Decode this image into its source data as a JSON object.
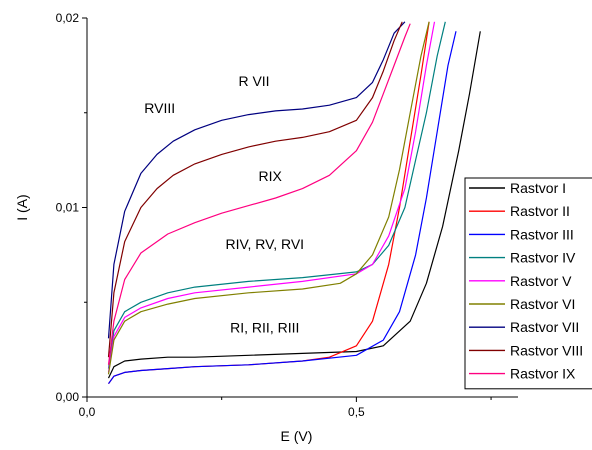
{
  "chart_data": {
    "type": "line",
    "title": "",
    "xlabel": "E (V)",
    "ylabel": "I (A)",
    "xlim": [
      0,
      0.8
    ],
    "ylim": [
      0,
      0.02
    ],
    "xticks": [
      0.0,
      0.5
    ],
    "xtick_labels": [
      "0,0",
      "0,5"
    ],
    "yticks": [
      0.0,
      0.01,
      0.02
    ],
    "ytick_labels": [
      "0,00",
      "0,01",
      "0,02"
    ],
    "grid": false,
    "legend_position": "right",
    "annotations": [
      {
        "text": "R VII",
        "x": 0.31,
        "y": 0.0164
      },
      {
        "text": "RVIII",
        "x": 0.135,
        "y": 0.015
      },
      {
        "text": "RIX",
        "x": 0.34,
        "y": 0.0114
      },
      {
        "text": "RIV, RV, RVI",
        "x": 0.33,
        "y": 0.0078
      },
      {
        "text": "RI, RII, RIII",
        "x": 0.33,
        "y": 0.0034
      }
    ],
    "series": [
      {
        "name": "Rastvor I",
        "color": "#000000",
        "x": [
          0.04,
          0.05,
          0.07,
          0.1,
          0.15,
          0.2,
          0.3,
          0.4,
          0.5,
          0.55,
          0.6,
          0.63,
          0.66,
          0.69,
          0.71,
          0.73
        ],
        "y": [
          0.001,
          0.0016,
          0.0019,
          0.002,
          0.0021,
          0.0021,
          0.0022,
          0.0023,
          0.0024,
          0.0027,
          0.004,
          0.006,
          0.009,
          0.013,
          0.016,
          0.0193
        ]
      },
      {
        "name": "Rastvor II",
        "color": "#ff0000",
        "x": [
          0.04,
          0.05,
          0.07,
          0.1,
          0.15,
          0.2,
          0.3,
          0.4,
          0.45,
          0.5,
          0.53,
          0.56,
          0.58,
          0.6,
          0.62,
          0.635
        ],
        "y": [
          0.0007,
          0.0011,
          0.0013,
          0.0014,
          0.0015,
          0.0016,
          0.0017,
          0.0019,
          0.0021,
          0.0027,
          0.004,
          0.007,
          0.01,
          0.0135,
          0.017,
          0.0198
        ]
      },
      {
        "name": "Rastvor III",
        "color": "#0000ff",
        "x": [
          0.04,
          0.05,
          0.07,
          0.1,
          0.15,
          0.2,
          0.3,
          0.4,
          0.5,
          0.55,
          0.58,
          0.61,
          0.63,
          0.65,
          0.67,
          0.685
        ],
        "y": [
          0.0007,
          0.0011,
          0.0013,
          0.0014,
          0.0015,
          0.0016,
          0.0017,
          0.0019,
          0.0022,
          0.003,
          0.0045,
          0.0075,
          0.0105,
          0.014,
          0.0175,
          0.0193
        ]
      },
      {
        "name": "Rastvor IV",
        "color": "#008080",
        "x": [
          0.04,
          0.05,
          0.07,
          0.1,
          0.15,
          0.2,
          0.3,
          0.4,
          0.5,
          0.53,
          0.56,
          0.59,
          0.61,
          0.63,
          0.65,
          0.665
        ],
        "y": [
          0.0015,
          0.0035,
          0.0045,
          0.005,
          0.0055,
          0.0058,
          0.0061,
          0.0063,
          0.0066,
          0.007,
          0.008,
          0.01,
          0.0125,
          0.015,
          0.018,
          0.0198
        ]
      },
      {
        "name": "Rastvor V",
        "color": "#ff00ff",
        "x": [
          0.04,
          0.05,
          0.07,
          0.1,
          0.15,
          0.2,
          0.3,
          0.4,
          0.5,
          0.53,
          0.56,
          0.59,
          0.61,
          0.63,
          0.645
        ],
        "y": [
          0.0013,
          0.0032,
          0.0042,
          0.0047,
          0.0052,
          0.0055,
          0.0058,
          0.0061,
          0.0065,
          0.007,
          0.0085,
          0.011,
          0.014,
          0.0175,
          0.0198
        ]
      },
      {
        "name": "Rastvor VI",
        "color": "#808000",
        "x": [
          0.04,
          0.05,
          0.07,
          0.1,
          0.15,
          0.2,
          0.3,
          0.4,
          0.47,
          0.5,
          0.53,
          0.56,
          0.58,
          0.6,
          0.62,
          0.635
        ],
        "y": [
          0.0012,
          0.003,
          0.004,
          0.0045,
          0.0049,
          0.0052,
          0.0055,
          0.0057,
          0.006,
          0.0065,
          0.0075,
          0.0095,
          0.012,
          0.015,
          0.018,
          0.0198
        ]
      },
      {
        "name": "Rastvor VII",
        "color": "#000080",
        "x": [
          0.04,
          0.05,
          0.07,
          0.1,
          0.13,
          0.16,
          0.2,
          0.25,
          0.3,
          0.35,
          0.4,
          0.45,
          0.5,
          0.53,
          0.55,
          0.57,
          0.59
        ],
        "y": [
          0.0031,
          0.007,
          0.0098,
          0.0118,
          0.0128,
          0.0135,
          0.0141,
          0.0146,
          0.0149,
          0.0151,
          0.0152,
          0.0154,
          0.0158,
          0.0166,
          0.0178,
          0.0192,
          0.0198
        ]
      },
      {
        "name": "Rastvor VIII",
        "color": "#800000",
        "x": [
          0.04,
          0.05,
          0.07,
          0.1,
          0.13,
          0.16,
          0.2,
          0.25,
          0.3,
          0.35,
          0.4,
          0.45,
          0.5,
          0.53,
          0.55,
          0.57,
          0.585
        ],
        "y": [
          0.0021,
          0.0055,
          0.0082,
          0.01,
          0.011,
          0.0117,
          0.0123,
          0.0128,
          0.0132,
          0.0135,
          0.0137,
          0.014,
          0.0146,
          0.0158,
          0.0172,
          0.0188,
          0.0198
        ]
      },
      {
        "name": "Rastvor IX",
        "color": "#ff0080",
        "x": [
          0.04,
          0.05,
          0.07,
          0.1,
          0.15,
          0.2,
          0.25,
          0.3,
          0.35,
          0.4,
          0.45,
          0.5,
          0.53,
          0.55,
          0.57,
          0.59,
          0.6
        ],
        "y": [
          0.0017,
          0.004,
          0.0062,
          0.0076,
          0.0086,
          0.0092,
          0.0097,
          0.0101,
          0.0105,
          0.011,
          0.0117,
          0.013,
          0.0145,
          0.016,
          0.0175,
          0.019,
          0.0197
        ]
      }
    ]
  }
}
